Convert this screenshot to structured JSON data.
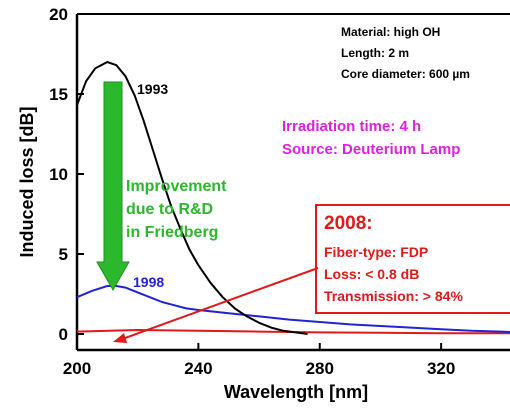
{
  "chart_data": {
    "type": "line",
    "xlabel": "Wavelength [nm]",
    "ylabel": "Induced loss [dB]",
    "xlim": [
      200,
      345
    ],
    "ylim": [
      -1,
      20
    ],
    "x_ticks": [
      "200",
      "240",
      "280",
      "320"
    ],
    "y_ticks": [
      "0",
      "5",
      "10",
      "15",
      "20"
    ],
    "grid": false,
    "series": [
      {
        "name": "1993",
        "color": "#000000",
        "x": [
          200,
          203,
          206,
          210,
          213,
          216,
          219,
          222,
          225,
          228,
          231,
          234,
          237,
          240,
          244,
          248,
          252,
          256,
          260,
          264,
          268,
          272,
          276
        ],
        "y": [
          14.3,
          15.8,
          16.6,
          17.0,
          16.8,
          16.1,
          14.9,
          13.3,
          11.5,
          9.7,
          8.0,
          6.6,
          5.3,
          4.3,
          3.2,
          2.3,
          1.6,
          1.1,
          0.7,
          0.4,
          0.2,
          0.1,
          0.0
        ]
      },
      {
        "name": "1998",
        "color": "#2323d6",
        "x": [
          200,
          205,
          210,
          213,
          216,
          220,
          224,
          228,
          232,
          236,
          240,
          250,
          260,
          270,
          280,
          290,
          300,
          310,
          320,
          330,
          340,
          345
        ],
        "y": [
          2.3,
          2.7,
          3.0,
          3.0,
          2.9,
          2.6,
          2.3,
          2.0,
          1.8,
          1.6,
          1.5,
          1.3,
          1.1,
          0.9,
          0.75,
          0.6,
          0.5,
          0.4,
          0.3,
          0.2,
          0.15,
          0.1
        ]
      },
      {
        "name": "2008",
        "color": "#e01919",
        "x": [
          200,
          220,
          240,
          260,
          280,
          300,
          320,
          345
        ],
        "y": [
          0.15,
          0.25,
          0.2,
          0.15,
          0.1,
          0.08,
          0.05,
          0.05
        ]
      }
    ]
  },
  "annotations": {
    "material": "Material: high OH",
    "length": "Length: 2 m",
    "core_diameter": "Core diameter: 600 µm",
    "irradiation_time": "Irradiation time: 4 h",
    "source": "Source: Deuterium Lamp",
    "improvement": [
      "Improvement",
      "due to R&D",
      "in Friedberg"
    ],
    "box": {
      "title": "2008:",
      "lines": [
        "Fiber-type: FDP",
        "Loss: < 0.8 dB",
        "Transmission: > 84%"
      ]
    }
  },
  "colors": {
    "magenta": "#e020e0",
    "green": "#2cb82c",
    "red": "#e01919",
    "blue": "#2323d6"
  }
}
